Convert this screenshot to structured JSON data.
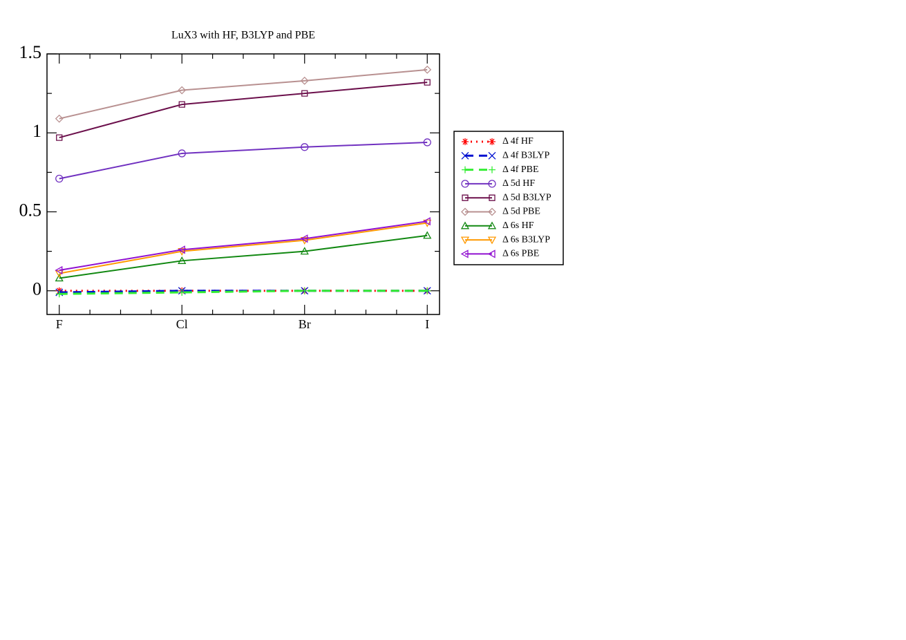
{
  "chart_data": {
    "type": "line",
    "title": "LuX3 with HF, B3LYP and PBE",
    "categories": [
      "F",
      "Cl",
      "Br",
      "I"
    ],
    "ylim": [
      -0.15,
      1.5
    ],
    "yticks": [
      0,
      0.5,
      1,
      1.5
    ],
    "minor_yticks": [
      0.25,
      0.75,
      1.25
    ],
    "series": [
      {
        "name": "Δ 4f HF",
        "color": "#ff0000",
        "marker": "asterisk",
        "dash": "dotted",
        "values": [
          0,
          0,
          0,
          0
        ]
      },
      {
        "name": "Δ 4f B3LYP",
        "color": "#0010d0",
        "marker": "cross",
        "dash": "dashed",
        "values": [
          -0.01,
          0,
          0,
          0
        ]
      },
      {
        "name": "Δ 4f PBE",
        "color": "#33ee33",
        "marker": "plus",
        "dash": "dashed",
        "values": [
          -0.02,
          -0.01,
          0,
          0
        ]
      },
      {
        "name": "Δ 5d HF",
        "color": "#7030c0",
        "marker": "circle",
        "dash": "solid",
        "values": [
          0.71,
          0.87,
          0.91,
          0.94
        ]
      },
      {
        "name": "Δ 5d B3LYP",
        "color": "#6b0f4b",
        "marker": "square",
        "dash": "solid",
        "values": [
          0.97,
          1.18,
          1.25,
          1.32
        ]
      },
      {
        "name": "Δ 5d PBE",
        "color": "#b89090",
        "marker": "diamond",
        "dash": "solid",
        "values": [
          1.09,
          1.27,
          1.33,
          1.4
        ]
      },
      {
        "name": "Δ 6s HF",
        "color": "#118811",
        "marker": "triangle-up",
        "dash": "solid",
        "values": [
          0.08,
          0.19,
          0.25,
          0.35
        ]
      },
      {
        "name": "Δ 6s B3LYP",
        "color": "#ff9900",
        "marker": "triangle-down",
        "dash": "solid",
        "values": [
          0.11,
          0.25,
          0.32,
          0.43
        ]
      },
      {
        "name": "Δ 6s PBE",
        "color": "#9010d0",
        "marker": "triangle-left",
        "dash": "solid",
        "values": [
          0.13,
          0.26,
          0.33,
          0.44
        ]
      }
    ]
  }
}
